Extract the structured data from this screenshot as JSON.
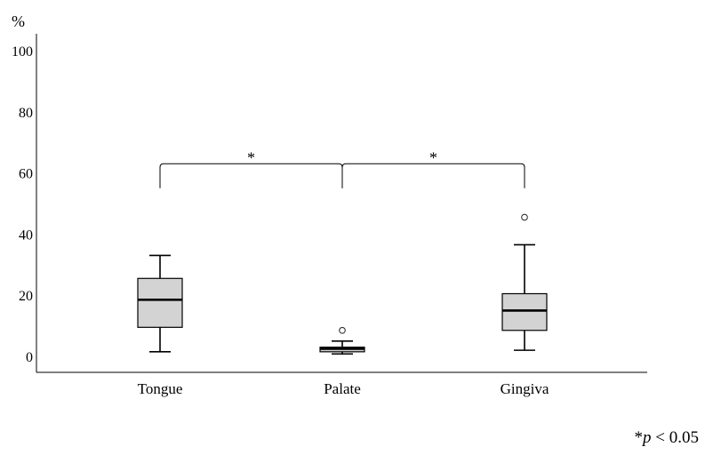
{
  "chart_data": {
    "type": "boxplot",
    "title": "",
    "xlabel": "",
    "ylabel": "%",
    "ylim": [
      -5,
      105
    ],
    "yticks": [
      0,
      20,
      40,
      60,
      80,
      100
    ],
    "ytick_labels": [
      "0",
      "20",
      "40",
      "60",
      "80",
      "100"
    ],
    "grid": false,
    "legend": "none",
    "box_fill": "#d3d3d3",
    "stroke_color": "#000000",
    "categories": [
      "Tongue",
      "Palate",
      "Gingiva"
    ],
    "boxes": [
      {
        "category": "Tongue",
        "whisker_low": 1.5,
        "q1": 9.5,
        "median": 18.5,
        "q3": 25.5,
        "whisker_high": 33,
        "outliers": []
      },
      {
        "category": "Palate",
        "whisker_low": 0.8,
        "q1": 1.5,
        "median": 2.5,
        "q3": 3.0,
        "whisker_high": 5.0,
        "outliers": [
          8.5
        ]
      },
      {
        "category": "Gingiva",
        "whisker_low": 2.0,
        "q1": 8.5,
        "median": 15.0,
        "q3": 20.5,
        "whisker_high": 36.5,
        "outliers": [
          45.5
        ]
      }
    ],
    "significance": [
      {
        "from": 0,
        "to": 1,
        "label": "*",
        "y": 63,
        "drop": 8
      },
      {
        "from": 1,
        "to": 2,
        "label": "*",
        "y": 63,
        "drop": 8
      }
    ],
    "footnote": {
      "prefix": "*",
      "italic": "p",
      "suffix": " < 0.05"
    }
  }
}
